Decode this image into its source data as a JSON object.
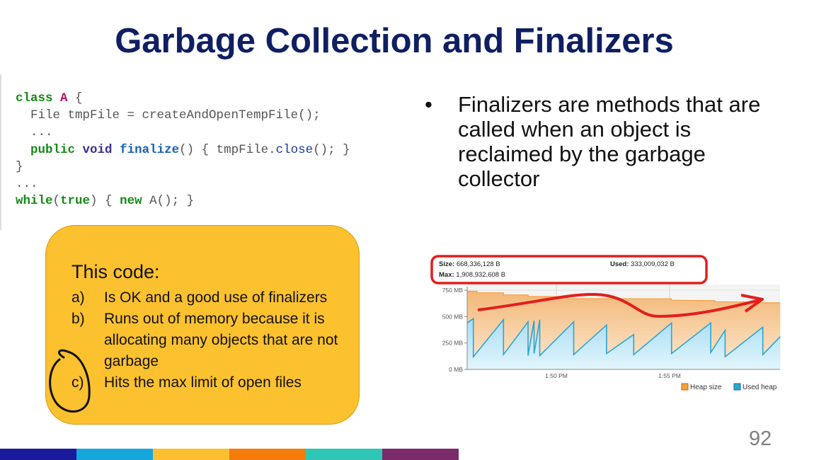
{
  "slide": {
    "title": "Garbage Collection and Finalizers",
    "page_number": "92"
  },
  "code": {
    "lines": [
      [
        "class",
        " ",
        "A",
        " {"
      ],
      [
        "  File tmpFile = createAndOpenTempFile();"
      ],
      [
        "  ..."
      ],
      [
        "  ",
        "public",
        " ",
        "void",
        " ",
        "finalize",
        "() { tmpFile.",
        "close",
        "(); }"
      ],
      [
        "}"
      ],
      [
        "..."
      ],
      [
        "while",
        "(",
        "true",
        ") { ",
        "new",
        " A(); }"
      ]
    ]
  },
  "bullet": {
    "marker": "•",
    "text": "Finalizers are methods that are called when an object is reclaimed by the garbage collector"
  },
  "quiz": {
    "title": "This code:",
    "options": [
      {
        "label": "a)",
        "text": "Is OK and a good use of finalizers"
      },
      {
        "label": "b)",
        "text": "Runs out of memory because it is allocating many objects that are not garbage"
      },
      {
        "label": "c)",
        "text": "Hits the max limit of open files",
        "circled": true
      }
    ],
    "colors": {
      "fill": "#fcc12e",
      "circle": "#111111"
    }
  },
  "chart_data": {
    "type": "area",
    "header": {
      "size_label": "Size:",
      "size_value": "668,336,128 B",
      "used_label": "Used:",
      "used_value": "333,009,032 B",
      "max_label": "Max:",
      "max_value": "1,908,932,608 B"
    },
    "y_ticks": [
      "750 MB",
      "500 MB",
      "250 MB",
      "0 MB"
    ],
    "y_tick_values": [
      750,
      500,
      250,
      0
    ],
    "x_ticks": [
      "1:50 PM",
      "1:55 PM"
    ],
    "x_tick_values": [
      "13:50:00",
      "13:55:00"
    ],
    "ylim": [
      0,
      750
    ],
    "xlim": [
      "13:46:04",
      "13:59:53"
    ],
    "grid": true,
    "legend_position": "bottom-right",
    "series": [
      {
        "name": "Heap size",
        "color": "#f5a03c",
        "points": [
          [
            "13:46:04",
            740
          ],
          [
            "13:46:30",
            740
          ],
          [
            "13:46:30",
            725
          ],
          [
            "13:47:40",
            725
          ],
          [
            "13:47:40",
            705
          ],
          [
            "13:48:45",
            705
          ],
          [
            "13:48:45",
            690
          ],
          [
            "13:50:30",
            690
          ],
          [
            "13:50:30",
            670
          ],
          [
            "13:55:05",
            668
          ],
          [
            "13:55:05",
            655
          ],
          [
            "13:57:00",
            650
          ],
          [
            "13:57:00",
            640
          ],
          [
            "13:58:30",
            638
          ],
          [
            "13:58:30",
            630
          ],
          [
            "13:59:53",
            630
          ]
        ]
      },
      {
        "name": "Used heap",
        "color": "#2aa6d8",
        "points": [
          [
            "13:46:04",
            440
          ],
          [
            "13:46:20",
            480
          ],
          [
            "13:46:20",
            120
          ],
          [
            "13:47:40",
            470
          ],
          [
            "13:47:40",
            140
          ],
          [
            "13:48:45",
            450
          ],
          [
            "13:48:45",
            130
          ],
          [
            "13:49:01",
            460
          ],
          [
            "13:49:01",
            150
          ],
          [
            "13:49:16",
            470
          ],
          [
            "13:49:16",
            130
          ],
          [
            "13:50:46",
            450
          ],
          [
            "13:50:46",
            140
          ],
          [
            "13:52:13",
            420
          ],
          [
            "13:52:13",
            150
          ],
          [
            "13:53:25",
            330
          ],
          [
            "13:53:25",
            140
          ],
          [
            "13:55:05",
            440
          ],
          [
            "13:55:05",
            150
          ],
          [
            "13:56:49",
            440
          ],
          [
            "13:56:49",
            160
          ],
          [
            "13:57:27",
            370
          ],
          [
            "13:57:27",
            120
          ],
          [
            "13:59:07",
            400
          ],
          [
            "13:59:07",
            140
          ],
          [
            "13:59:53",
            310
          ]
        ]
      }
    ],
    "annotation_color": "#e31e1e"
  },
  "footer_colors": [
    "#1a1a9c",
    "#14a6dd",
    "#fbbf2f",
    "#f57c0a",
    "#2ec6b5",
    "#7b2a6c"
  ]
}
